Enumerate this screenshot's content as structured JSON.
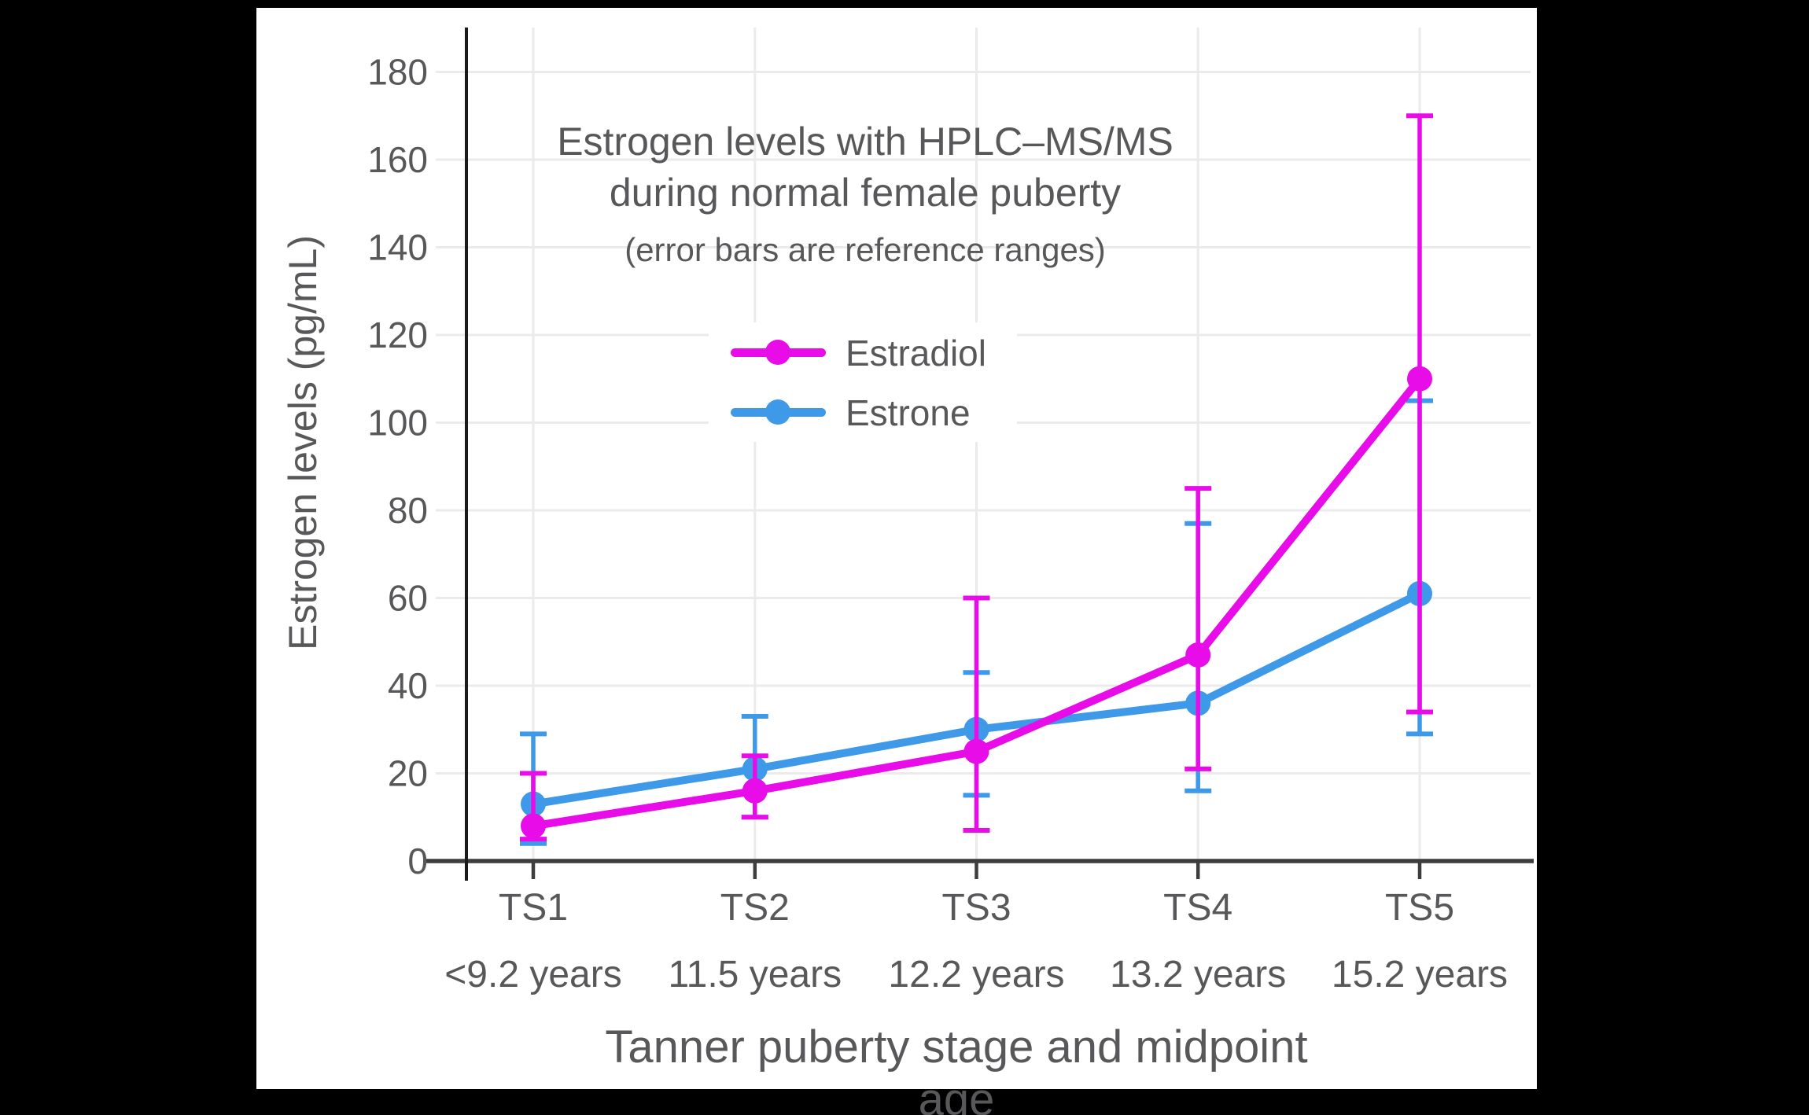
{
  "page": {
    "background_color": "#000000",
    "card_color": "#ffffff"
  },
  "chart_data": {
    "type": "line",
    "title_lines": [
      "Estrogen levels with HPLC–MS/MS",
      "during normal female puberty"
    ],
    "subtitle": "(error bars are reference ranges)",
    "xlabel": "Tanner puberty stage and midpoint age",
    "ylabel": "Estrogen levels (pg/mL)",
    "categories": [
      "TS1",
      "TS2",
      "TS3",
      "TS4",
      "TS5"
    ],
    "category_ages": [
      "<9.2 years",
      "11.5 years",
      "12.2 years",
      "13.2 years",
      "15.2 years"
    ],
    "y_ticks": [
      0,
      20,
      40,
      60,
      80,
      100,
      120,
      140,
      160,
      180
    ],
    "ylim": [
      0,
      188
    ],
    "grid": true,
    "error_bar_meaning": "reference ranges",
    "legend_position": "inside-top-center",
    "series": [
      {
        "name": "Estrone",
        "color": "#3E9AE8",
        "values": [
          13,
          21,
          30,
          36,
          61
        ],
        "range_low": [
          4,
          10,
          15,
          16,
          29
        ],
        "range_high": [
          29,
          33,
          43,
          77,
          105
        ]
      },
      {
        "name": "Estradiol",
        "color": "#E80CE8",
        "values": [
          8,
          16,
          25,
          47,
          110
        ],
        "range_low": [
          5,
          10,
          7,
          21,
          34
        ],
        "range_high": [
          20,
          24,
          60,
          85,
          170
        ]
      }
    ],
    "colors": {
      "grid": "#EBEBEB",
      "x_axis": "#3D3D3D",
      "y_axis": "#1A1A1A",
      "text": "#58585A"
    }
  },
  "legend": {
    "items": [
      {
        "label": "Estradiol",
        "color": "#E80CE8"
      },
      {
        "label": "Estrone",
        "color": "#3E9AE8"
      }
    ]
  }
}
